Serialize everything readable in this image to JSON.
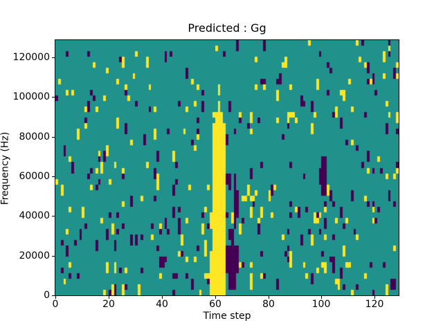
{
  "chart_data": {
    "type": "heatmap",
    "title": "Predicted : Gg",
    "xlabel": "Time step",
    "ylabel": "Frequency (Hz)",
    "x_range": [
      0,
      129
    ],
    "y_range": [
      0,
      128700
    ],
    "x_ticks": [
      0,
      20,
      40,
      60,
      80,
      100,
      120
    ],
    "y_ticks": [
      0,
      20000,
      40000,
      60000,
      80000,
      100000,
      120000
    ],
    "grid": {
      "cols": 129,
      "rows": 46
    },
    "colors": {
      "background": "#21918c",
      "yellow": "#fde725",
      "purple": "#440154",
      "axis": "#000000",
      "figure_background": "#ffffff",
      "text": "#000000"
    },
    "noise": {
      "seed": 42,
      "base_density": 0.042,
      "top_attenuation": 0.5,
      "run2_prob": 0.3
    },
    "features": [
      {
        "color": "yellow",
        "c0": 59,
        "c1": 63,
        "r0": 0,
        "r1": 30
      },
      {
        "color": "yellow",
        "c0": 58,
        "c1": 58,
        "r0": 0,
        "r1": 7
      },
      {
        "color": "yellow",
        "c0": 58,
        "c1": 58,
        "r0": 12,
        "r1": 14
      },
      {
        "color": "yellow",
        "c0": 60,
        "c1": 62,
        "r0": 31,
        "r1": 32
      },
      {
        "color": "yellow",
        "c0": 61,
        "c1": 61,
        "r0": 33,
        "r1": 34
      },
      {
        "color": "purple",
        "c0": 64,
        "c1": 64,
        "r0": 27,
        "r1": 28
      },
      {
        "color": "purple",
        "c0": 66,
        "c1": 66,
        "r0": 8,
        "r1": 11
      },
      {
        "color": "purple",
        "c0": 67,
        "c1": 67,
        "r0": 12,
        "r1": 21
      },
      {
        "color": "purple",
        "c0": 68,
        "c1": 68,
        "r0": 14,
        "r1": 18
      },
      {
        "color": "purple",
        "c0": 64,
        "c1": 68,
        "r0": 4,
        "r1": 8
      },
      {
        "color": "purple",
        "c0": 65,
        "c1": 67,
        "r0": 1,
        "r1": 3
      },
      {
        "color": "purple",
        "c0": 65,
        "c1": 65,
        "r0": 19,
        "r1": 21
      },
      {
        "color": "purple",
        "c0": 100,
        "c1": 101,
        "r0": 18,
        "r1": 24
      },
      {
        "color": "purple",
        "c0": 99,
        "c1": 99,
        "r0": 20,
        "r1": 22
      },
      {
        "color": "yellow",
        "c0": 70,
        "c1": 71,
        "r0": 17,
        "r1": 17
      },
      {
        "color": "yellow",
        "c0": 73,
        "c1": 74,
        "r0": 17,
        "r1": 17
      }
    ]
  }
}
